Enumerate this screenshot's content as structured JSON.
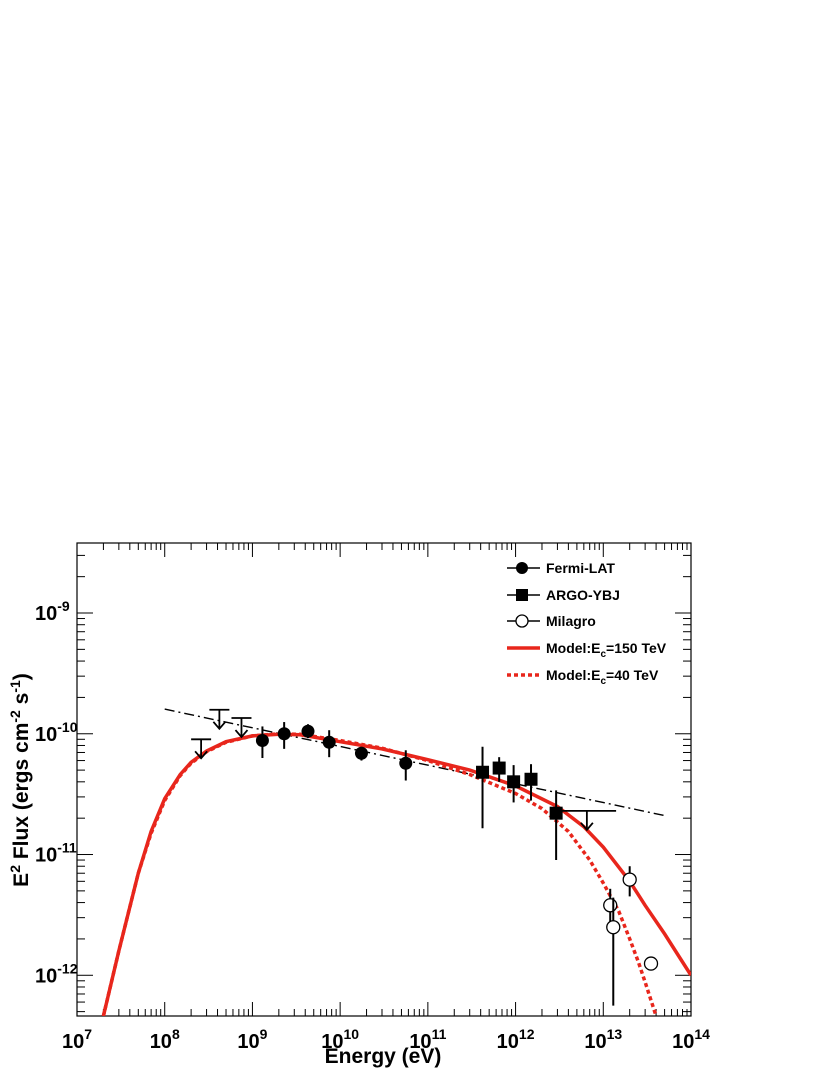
{
  "chart_data": {
    "type": "scatter",
    "xscale": "log",
    "yscale": "log",
    "xlim": [
      10000000.0,
      100000000000000.0
    ],
    "ylim": [
      4.6e-13,
      3.8e-09
    ],
    "xlabel": "Energy (eV)",
    "ylabel": {
      "base": "E",
      "sup1": "2",
      "mid": " Flux (ergs cm",
      "sup2": "-2",
      "mid2": " s",
      "sup3": "-1",
      "end": ")"
    },
    "xticks": [
      {
        "base": "10",
        "exp": "7",
        "value": 10000000.0
      },
      {
        "base": "10",
        "exp": "8",
        "value": 100000000.0
      },
      {
        "base": "10",
        "exp": "9",
        "value": 1000000000.0
      },
      {
        "base": "10",
        "exp": "10",
        "value": 10000000000.0
      },
      {
        "base": "10",
        "exp": "11",
        "value": 100000000000.0
      },
      {
        "base": "10",
        "exp": "12",
        "value": 1000000000000.0
      },
      {
        "base": "10",
        "exp": "13",
        "value": 10000000000000.0
      },
      {
        "base": "10",
        "exp": "14",
        "value": 100000000000000.0
      }
    ],
    "yticks": [
      {
        "base": "10",
        "exp": "-12",
        "value": 1e-12
      },
      {
        "base": "10",
        "exp": "-11",
        "value": 1e-11
      },
      {
        "base": "10",
        "exp": "-10",
        "value": 1e-10
      },
      {
        "base": "10",
        "exp": "-9",
        "value": 1e-09
      }
    ],
    "legend": {
      "placement": "top-right",
      "entries": [
        {
          "key": "fermi",
          "label": "Fermi-LAT",
          "marker": "filled-circle"
        },
        {
          "key": "argo",
          "label": "ARGO-YBJ",
          "marker": "filled-square"
        },
        {
          "key": "milagro",
          "label": "Milagro",
          "marker": "open-circle"
        },
        {
          "key": "model150",
          "label_main": "Model:E",
          "label_sub": "c",
          "label_rest": "=150 TeV",
          "line": "solid",
          "color": "#e8261c"
        },
        {
          "key": "model40",
          "label_main": "Model:E",
          "label_sub": "c",
          "label_rest": "=40 TeV",
          "line": "dotted",
          "color": "#e8261c"
        }
      ]
    },
    "series": [
      {
        "key": "fermi",
        "marker": "filled-circle",
        "points": [
          {
            "x": 1300000000.0,
            "y": 8.8e-11,
            "ylo": 6.3e-11,
            "yhi": 1.15e-10
          },
          {
            "x": 2300000000.0,
            "y": 1e-10,
            "ylo": 7.5e-11,
            "yhi": 1.25e-10
          },
          {
            "x": 4300000000.0,
            "y": 1.05e-10,
            "ylo": 9.2e-11,
            "yhi": 1.2e-10
          },
          {
            "x": 7500000000.0,
            "y": 8.5e-11,
            "ylo": 6.4e-11,
            "yhi": 1.07e-10
          },
          {
            "x": 17500000000.0,
            "y": 6.9e-11,
            "ylo": 6e-11,
            "yhi": 7.8e-11
          },
          {
            "x": 56000000000.0,
            "y": 5.7e-11,
            "ylo": 4.1e-11,
            "yhi": 7.3e-11
          }
        ]
      },
      {
        "key": "fermi-ul",
        "marker": "upper-limit",
        "points": [
          {
            "x": 260000000.0,
            "y": 9e-11
          },
          {
            "x": 420000000.0,
            "y": 1.58e-10
          },
          {
            "x": 750000000.0,
            "y": 1.35e-10
          }
        ]
      },
      {
        "key": "argo",
        "marker": "filled-square",
        "points": [
          {
            "x": 420000000000.0,
            "y": 4.8e-11,
            "ylo": 1.65e-11,
            "yhi": 7.8e-11
          },
          {
            "x": 650000000000.0,
            "y": 5.2e-11,
            "ylo": 4e-11,
            "yhi": 6.4e-11
          },
          {
            "x": 950000000000.0,
            "y": 4e-11,
            "ylo": 2.7e-11,
            "yhi": 5.5e-11
          },
          {
            "x": 1500000000000.0,
            "y": 4.2e-11,
            "ylo": 2.8e-11,
            "yhi": 5.6e-11
          },
          {
            "x": 2900000000000.0,
            "y": 2.2e-11,
            "ylo": 9e-12,
            "yhi": 3.4e-11
          }
        ]
      },
      {
        "key": "argo-ul",
        "marker": "upper-limit",
        "points": [
          {
            "x": 6500000000000.0,
            "y": 2.3e-11,
            "xlo": 2900000000000.0,
            "xhi": 14000000000000.0
          }
        ]
      },
      {
        "key": "milagro",
        "marker": "open-circle",
        "points": [
          {
            "x": 12000000000000.0,
            "y": 3.8e-12,
            "ylo": 2.7e-12,
            "yhi": 5.2e-12
          },
          {
            "x": 13000000000000.0,
            "y": 2.5e-12,
            "ylo": 5.6e-13,
            "yhi": 4.4e-12
          },
          {
            "x": 20000000000000.0,
            "y": 6.2e-12,
            "ylo": 4.5e-12,
            "yhi": 8e-12
          },
          {
            "x": 35000000000000.0,
            "y": 1.25e-12,
            "ylo": 1.2e-12,
            "yhi": 1.3e-12
          }
        ]
      },
      {
        "key": "powerlaw",
        "line": "dashdot",
        "points": [
          {
            "x": 100000000.0,
            "y": 1.6e-10
          },
          {
            "x": 50000000000000.0,
            "y": 2.1e-11
          }
        ]
      },
      {
        "key": "model150",
        "line": "solid",
        "color": "#e8261c",
        "points": [
          {
            "x": 20000000.0,
            "y": 4.6e-13
          },
          {
            "x": 30000000.0,
            "y": 1.6e-12
          },
          {
            "x": 50000000.0,
            "y": 7e-12
          },
          {
            "x": 70000000.0,
            "y": 1.55e-11
          },
          {
            "x": 100000000.0,
            "y": 2.9e-11
          },
          {
            "x": 150000000.0,
            "y": 4.6e-11
          },
          {
            "x": 200000000.0,
            "y": 5.8e-11
          },
          {
            "x": 300000000.0,
            "y": 7.2e-11
          },
          {
            "x": 500000000.0,
            "y": 8.6e-11
          },
          {
            "x": 1000000000.0,
            "y": 9.6e-11
          },
          {
            "x": 2000000000.0,
            "y": 9.9e-11
          },
          {
            "x": 3500000000.0,
            "y": 9.8e-11
          },
          {
            "x": 10000000000.0,
            "y": 8.6e-11
          },
          {
            "x": 30000000000.0,
            "y": 7.5e-11
          },
          {
            "x": 100000000000.0,
            "y": 6.1e-11
          },
          {
            "x": 300000000000.0,
            "y": 5e-11
          },
          {
            "x": 1000000000000.0,
            "y": 3.7e-11
          },
          {
            "x": 3000000000000.0,
            "y": 2.5e-11
          },
          {
            "x": 6000000000000.0,
            "y": 1.7e-11
          },
          {
            "x": 10000000000000.0,
            "y": 1.15e-11
          },
          {
            "x": 20000000000000.0,
            "y": 6e-12
          },
          {
            "x": 30000000000000.0,
            "y": 3.8e-12
          },
          {
            "x": 50000000000000.0,
            "y": 2.2e-12
          },
          {
            "x": 70000000000000.0,
            "y": 1.5e-12
          },
          {
            "x": 100000000000000.0,
            "y": 1e-12
          }
        ]
      },
      {
        "key": "model40",
        "line": "dotted",
        "color": "#e8261c",
        "points": [
          {
            "x": 20000000.0,
            "y": 4.6e-13
          },
          {
            "x": 30000000.0,
            "y": 1.6e-12
          },
          {
            "x": 50000000.0,
            "y": 7e-12
          },
          {
            "x": 70000000.0,
            "y": 1.5e-11
          },
          {
            "x": 100000000.0,
            "y": 2.8e-11
          },
          {
            "x": 150000000.0,
            "y": 4.5e-11
          },
          {
            "x": 200000000.0,
            "y": 5.7e-11
          },
          {
            "x": 300000000.0,
            "y": 7.1e-11
          },
          {
            "x": 500000000.0,
            "y": 8.5e-11
          },
          {
            "x": 1000000000.0,
            "y": 9.6e-11
          },
          {
            "x": 2000000000.0,
            "y": 1e-10
          },
          {
            "x": 3500000000.0,
            "y": 9.9e-11
          },
          {
            "x": 10000000000.0,
            "y": 8.8e-11
          },
          {
            "x": 30000000000.0,
            "y": 7.6e-11
          },
          {
            "x": 100000000000.0,
            "y": 6e-11
          },
          {
            "x": 300000000000.0,
            "y": 4.6e-11
          },
          {
            "x": 1000000000000.0,
            "y": 3.2e-11
          },
          {
            "x": 2000000000000.0,
            "y": 2.4e-11
          },
          {
            "x": 4000000000000.0,
            "y": 1.55e-11
          },
          {
            "x": 7000000000000.0,
            "y": 9e-12
          },
          {
            "x": 10000000000000.0,
            "y": 5.8e-12
          },
          {
            "x": 15000000000000.0,
            "y": 3.4e-12
          },
          {
            "x": 20000000000000.0,
            "y": 2e-12
          },
          {
            "x": 25000000000000.0,
            "y": 1.3e-12
          },
          {
            "x": 30000000000000.0,
            "y": 8.8e-13
          },
          {
            "x": 35000000000000.0,
            "y": 6.2e-13
          },
          {
            "x": 40000000000000.0,
            "y": 4.6e-13
          }
        ]
      }
    ]
  }
}
